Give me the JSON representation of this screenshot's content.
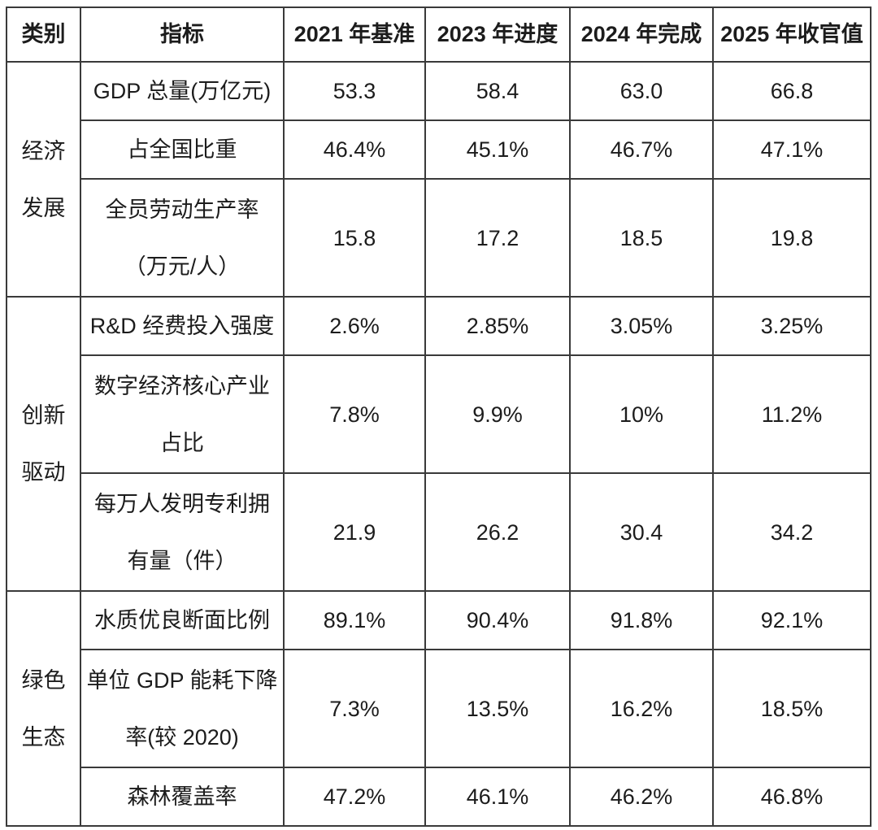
{
  "table": {
    "headers": [
      "类别",
      "指标",
      "2021 年基准",
      "2023 年进度",
      "2024 年完成",
      "2025 年收官值"
    ],
    "groups": [
      {
        "category": [
          "经济",
          "发展"
        ],
        "rows": [
          {
            "indicator": [
              "GDP 总量(万亿元)"
            ],
            "values": [
              "53.3",
              "58.4",
              "63.0",
              "66.8"
            ]
          },
          {
            "indicator": [
              "占全国比重"
            ],
            "values": [
              "46.4%",
              "45.1%",
              "46.7%",
              "47.1%"
            ]
          },
          {
            "indicator": [
              "全员劳动生产率",
              "（万元/人）"
            ],
            "values": [
              "15.8",
              "17.2",
              "18.5",
              "19.8"
            ]
          }
        ]
      },
      {
        "category": [
          "创新",
          "驱动"
        ],
        "rows": [
          {
            "indicator": [
              "R&D 经费投入强度"
            ],
            "values": [
              "2.6%",
              "2.85%",
              "3.05%",
              "3.25%"
            ]
          },
          {
            "indicator": [
              "数字经济核心产业",
              "占比"
            ],
            "values": [
              "7.8%",
              "9.9%",
              "10%",
              "11.2%"
            ]
          },
          {
            "indicator": [
              "每万人发明专利拥",
              "有量（件）"
            ],
            "values": [
              "21.9",
              "26.2",
              "30.4",
              "34.2"
            ]
          }
        ]
      },
      {
        "category": [
          "绿色",
          "生态"
        ],
        "rows": [
          {
            "indicator": [
              "水质优良断面比例"
            ],
            "values": [
              "89.1%",
              "90.4%",
              "91.8%",
              "92.1%"
            ]
          },
          {
            "indicator": [
              "单位 GDP 能耗下降",
              "率(较 2020)"
            ],
            "values": [
              "7.3%",
              "13.5%",
              "16.2%",
              "18.5%"
            ]
          },
          {
            "indicator": [
              "森林覆盖率"
            ],
            "values": [
              "47.2%",
              "46.1%",
              "46.2%",
              "46.8%"
            ]
          }
        ]
      }
    ]
  }
}
